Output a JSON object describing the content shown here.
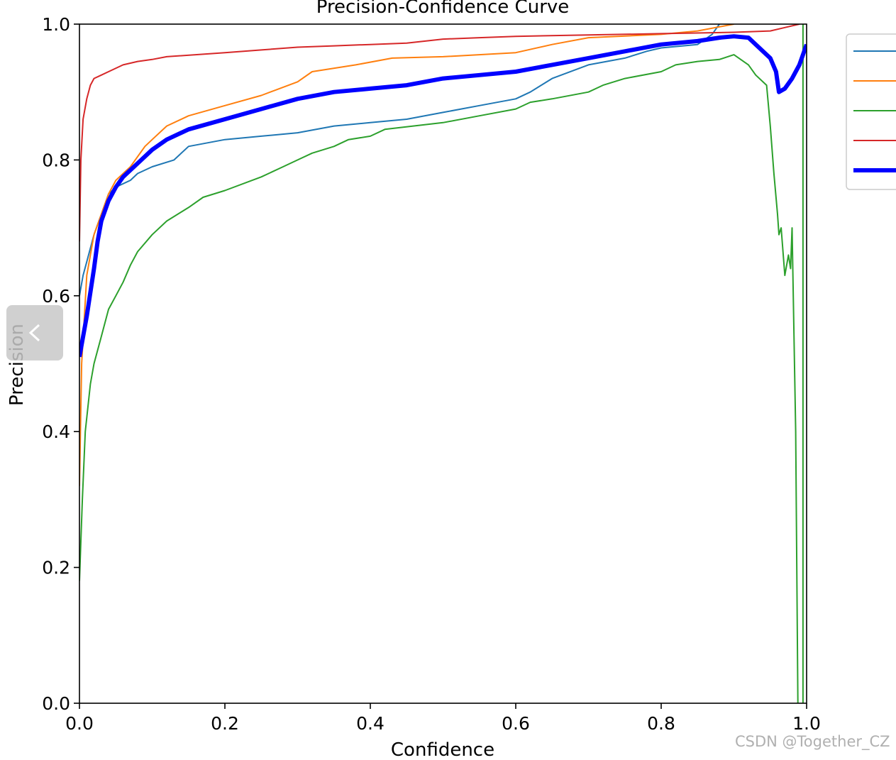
{
  "chart_data": {
    "type": "line",
    "title": "Precision-Confidence Curve",
    "xlabel": "Confidence",
    "ylabel": "Precision",
    "xlim": [
      0,
      1
    ],
    "ylim": [
      0,
      1
    ],
    "xticks": [
      "0.0",
      "0.2",
      "0.4",
      "0.6",
      "0.8",
      "1.0"
    ],
    "yticks": [
      "0.0",
      "0.2",
      "0.4",
      "0.6",
      "0.8",
      "1.0"
    ],
    "grid": false,
    "legend_position": "top-right",
    "series": [
      {
        "color": "#1f77b4",
        "width": 2,
        "points": [
          [
            0,
            0.6
          ],
          [
            0.005,
            0.63
          ],
          [
            0.01,
            0.65
          ],
          [
            0.02,
            0.69
          ],
          [
            0.03,
            0.72
          ],
          [
            0.04,
            0.75
          ],
          [
            0.05,
            0.76
          ],
          [
            0.07,
            0.77
          ],
          [
            0.08,
            0.78
          ],
          [
            0.1,
            0.79
          ],
          [
            0.13,
            0.8
          ],
          [
            0.15,
            0.82
          ],
          [
            0.2,
            0.83
          ],
          [
            0.25,
            0.835
          ],
          [
            0.3,
            0.84
          ],
          [
            0.35,
            0.85
          ],
          [
            0.4,
            0.855
          ],
          [
            0.45,
            0.86
          ],
          [
            0.5,
            0.87
          ],
          [
            0.55,
            0.88
          ],
          [
            0.6,
            0.89
          ],
          [
            0.62,
            0.9
          ],
          [
            0.65,
            0.92
          ],
          [
            0.7,
            0.94
          ],
          [
            0.75,
            0.95
          ],
          [
            0.78,
            0.96
          ],
          [
            0.8,
            0.965
          ],
          [
            0.85,
            0.97
          ],
          [
            0.87,
            0.985
          ],
          [
            0.88,
            1.0
          ]
        ]
      },
      {
        "color": "#ff7f0e",
        "width": 2,
        "points": [
          [
            0,
            0.32
          ],
          [
            0.003,
            0.5
          ],
          [
            0.01,
            0.63
          ],
          [
            0.02,
            0.69
          ],
          [
            0.03,
            0.72
          ],
          [
            0.04,
            0.75
          ],
          [
            0.05,
            0.77
          ],
          [
            0.07,
            0.79
          ],
          [
            0.09,
            0.82
          ],
          [
            0.1,
            0.83
          ],
          [
            0.12,
            0.85
          ],
          [
            0.15,
            0.865
          ],
          [
            0.2,
            0.88
          ],
          [
            0.25,
            0.895
          ],
          [
            0.3,
            0.915
          ],
          [
            0.32,
            0.93
          ],
          [
            0.38,
            0.94
          ],
          [
            0.43,
            0.95
          ],
          [
            0.5,
            0.952
          ],
          [
            0.6,
            0.958
          ],
          [
            0.65,
            0.97
          ],
          [
            0.7,
            0.98
          ],
          [
            0.8,
            0.985
          ],
          [
            0.85,
            0.99
          ],
          [
            0.9,
            1.0
          ]
        ]
      },
      {
        "color": "#2ca02c",
        "width": 2,
        "points": [
          [
            0,
            0.18
          ],
          [
            0.004,
            0.3
          ],
          [
            0.008,
            0.4
          ],
          [
            0.015,
            0.47
          ],
          [
            0.02,
            0.5
          ],
          [
            0.03,
            0.54
          ],
          [
            0.04,
            0.58
          ],
          [
            0.05,
            0.6
          ],
          [
            0.06,
            0.62
          ],
          [
            0.07,
            0.645
          ],
          [
            0.08,
            0.665
          ],
          [
            0.1,
            0.69
          ],
          [
            0.12,
            0.71
          ],
          [
            0.15,
            0.73
          ],
          [
            0.17,
            0.745
          ],
          [
            0.2,
            0.755
          ],
          [
            0.25,
            0.775
          ],
          [
            0.28,
            0.79
          ],
          [
            0.3,
            0.8
          ],
          [
            0.32,
            0.81
          ],
          [
            0.35,
            0.82
          ],
          [
            0.37,
            0.83
          ],
          [
            0.4,
            0.835
          ],
          [
            0.42,
            0.845
          ],
          [
            0.5,
            0.855
          ],
          [
            0.55,
            0.865
          ],
          [
            0.6,
            0.875
          ],
          [
            0.62,
            0.885
          ],
          [
            0.65,
            0.89
          ],
          [
            0.7,
            0.9
          ],
          [
            0.72,
            0.91
          ],
          [
            0.75,
            0.92
          ],
          [
            0.8,
            0.93
          ],
          [
            0.82,
            0.94
          ],
          [
            0.85,
            0.945
          ],
          [
            0.88,
            0.948
          ],
          [
            0.9,
            0.955
          ],
          [
            0.92,
            0.94
          ],
          [
            0.93,
            0.925
          ],
          [
            0.945,
            0.91
          ],
          [
            0.95,
            0.85
          ],
          [
            0.955,
            0.78
          ],
          [
            0.96,
            0.72
          ],
          [
            0.962,
            0.69
          ],
          [
            0.965,
            0.7
          ],
          [
            0.97,
            0.63
          ],
          [
            0.975,
            0.66
          ],
          [
            0.978,
            0.64
          ],
          [
            0.98,
            0.7
          ],
          [
            0.985,
            0.4
          ],
          [
            0.988,
            0.0
          ]
        ]
      },
      {
        "color": "#2ca02c",
        "width": 2,
        "points": [
          [
            0.995,
            0.0
          ],
          [
            0.995,
            1.0
          ]
        ]
      },
      {
        "color": "#d62728",
        "width": 2,
        "points": [
          [
            0,
            0.68
          ],
          [
            0.002,
            0.8
          ],
          [
            0.005,
            0.86
          ],
          [
            0.01,
            0.89
          ],
          [
            0.015,
            0.91
          ],
          [
            0.02,
            0.92
          ],
          [
            0.03,
            0.925
          ],
          [
            0.04,
            0.93
          ],
          [
            0.06,
            0.94
          ],
          [
            0.08,
            0.945
          ],
          [
            0.1,
            0.948
          ],
          [
            0.12,
            0.952
          ],
          [
            0.2,
            0.958
          ],
          [
            0.25,
            0.962
          ],
          [
            0.3,
            0.966
          ],
          [
            0.35,
            0.968
          ],
          [
            0.4,
            0.97
          ],
          [
            0.45,
            0.972
          ],
          [
            0.5,
            0.978
          ],
          [
            0.55,
            0.98
          ],
          [
            0.6,
            0.982
          ],
          [
            0.7,
            0.984
          ],
          [
            0.8,
            0.986
          ],
          [
            0.9,
            0.988
          ],
          [
            0.95,
            0.99
          ],
          [
            0.97,
            0.995
          ],
          [
            0.99,
            1.0
          ]
        ]
      },
      {
        "color": "#0000ff",
        "width": 6,
        "points": [
          [
            0,
            0.51
          ],
          [
            0.01,
            0.57
          ],
          [
            0.02,
            0.64
          ],
          [
            0.025,
            0.68
          ],
          [
            0.03,
            0.71
          ],
          [
            0.04,
            0.74
          ],
          [
            0.05,
            0.76
          ],
          [
            0.06,
            0.775
          ],
          [
            0.08,
            0.795
          ],
          [
            0.1,
            0.815
          ],
          [
            0.12,
            0.83
          ],
          [
            0.15,
            0.845
          ],
          [
            0.2,
            0.86
          ],
          [
            0.25,
            0.875
          ],
          [
            0.3,
            0.89
          ],
          [
            0.35,
            0.9
          ],
          [
            0.4,
            0.905
          ],
          [
            0.45,
            0.91
          ],
          [
            0.5,
            0.92
          ],
          [
            0.55,
            0.925
          ],
          [
            0.6,
            0.93
          ],
          [
            0.65,
            0.94
          ],
          [
            0.7,
            0.95
          ],
          [
            0.75,
            0.96
          ],
          [
            0.8,
            0.97
          ],
          [
            0.85,
            0.975
          ],
          [
            0.88,
            0.98
          ],
          [
            0.9,
            0.982
          ],
          [
            0.92,
            0.98
          ],
          [
            0.94,
            0.96
          ],
          [
            0.95,
            0.95
          ],
          [
            0.958,
            0.93
          ],
          [
            0.962,
            0.9
          ],
          [
            0.97,
            0.905
          ],
          [
            0.98,
            0.92
          ],
          [
            0.99,
            0.94
          ],
          [
            1.0,
            0.97
          ]
        ]
      }
    ]
  },
  "watermark": "CSDN @Together_CZ"
}
